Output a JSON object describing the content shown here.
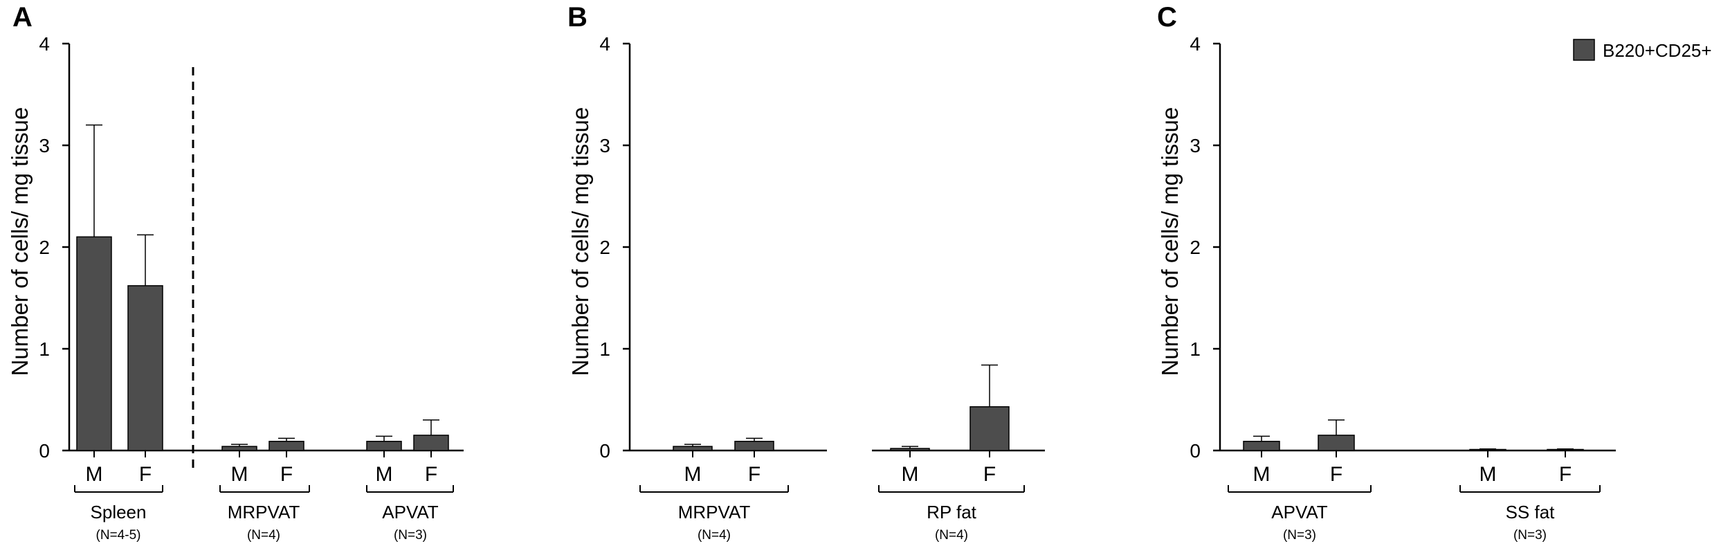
{
  "legend": {
    "label": "B220+CD25+",
    "color": "#4d4d4d"
  },
  "chart_data": [
    {
      "panel": "A",
      "type": "bar",
      "ylabel": "Number of cells/ mg tissue",
      "ylim": [
        0,
        4
      ],
      "yticks": [
        "0",
        "1",
        "2",
        "3",
        "4"
      ],
      "categories": [
        "M",
        "F",
        "M",
        "F",
        "M",
        "F"
      ],
      "values": [
        2.1,
        1.62,
        0.04,
        0.09,
        0.09,
        0.15
      ],
      "errors": [
        1.1,
        0.5,
        0.02,
        0.03,
        0.05,
        0.15
      ],
      "groups": [
        {
          "label": "Spleen",
          "n": "(N=4-5)"
        },
        {
          "label": "MRPVAT",
          "n": "(N=4)"
        },
        {
          "label": "APVAT",
          "n": "(N=3)"
        }
      ],
      "divider_after_group": 0
    },
    {
      "panel": "B",
      "type": "bar",
      "ylabel": "Number of cells/ mg tissue",
      "ylim": [
        0,
        4
      ],
      "yticks": [
        "0",
        "1",
        "2",
        "3",
        "4"
      ],
      "categories": [
        "M",
        "F",
        "M",
        "F"
      ],
      "values": [
        0.04,
        0.09,
        0.02,
        0.43
      ],
      "errors": [
        0.02,
        0.03,
        0.02,
        0.41
      ],
      "groups": [
        {
          "label": "MRPVAT",
          "n": "(N=4)"
        },
        {
          "label": "RP fat",
          "n": "(N=4)"
        }
      ]
    },
    {
      "panel": "C",
      "type": "bar",
      "ylabel": "Number of cells/ mg tissue",
      "ylim": [
        0,
        4
      ],
      "yticks": [
        "0",
        "1",
        "2",
        "3",
        "4"
      ],
      "categories": [
        "M",
        "F",
        "M",
        "F"
      ],
      "values": [
        0.09,
        0.15,
        0.005,
        0.005
      ],
      "errors": [
        0.05,
        0.15,
        0.01,
        0.01
      ],
      "groups": [
        {
          "label": "APVAT",
          "n": "(N=3)"
        },
        {
          "label": "SS fat",
          "n": "(N=3)"
        }
      ]
    }
  ]
}
